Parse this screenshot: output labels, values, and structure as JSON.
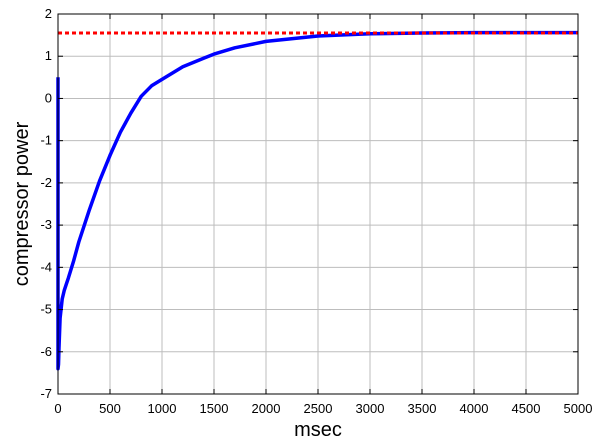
{
  "chart_data": {
    "type": "line",
    "title": "",
    "xlabel": "msec",
    "ylabel": "compressor power",
    "xlim": [
      0,
      5000
    ],
    "ylim": [
      -7,
      2
    ],
    "xticks": [
      0,
      500,
      1000,
      1500,
      2000,
      2500,
      3000,
      3500,
      4000,
      4500,
      5000
    ],
    "xtick_labels": [
      "0",
      "500",
      "1000",
      "1500",
      "2000",
      "2500",
      "3000",
      "3500",
      "4000",
      "4500",
      "5000"
    ],
    "yticks": [
      -7,
      -6,
      -5,
      -4,
      -3,
      -2,
      -1,
      0,
      1,
      2
    ],
    "ytick_labels": [
      "-7",
      "-6",
      "-5",
      "-4",
      "-3",
      "-2",
      "-1",
      "0",
      "1",
      "2"
    ],
    "grid": true,
    "legend": "none",
    "series": [
      {
        "color": "#0000ff",
        "style": "solid",
        "x": [
          0,
          0,
          5,
          10,
          20,
          40,
          60,
          80,
          100,
          150,
          200,
          300,
          400,
          500,
          600,
          700,
          800,
          900,
          1000,
          1200,
          1400,
          1500,
          1700,
          2000,
          2500,
          3000,
          3500,
          4000,
          4500,
          5000
        ],
        "y": [
          0.5,
          -6.4,
          -6.3,
          -5.9,
          -5.2,
          -4.75,
          -4.55,
          -4.4,
          -4.25,
          -3.85,
          -3.4,
          -2.65,
          -1.95,
          -1.35,
          -0.8,
          -0.35,
          0.05,
          0.3,
          0.45,
          0.75,
          0.95,
          1.05,
          1.2,
          1.35,
          1.48,
          1.53,
          1.55,
          1.56,
          1.56,
          1.56
        ]
      },
      {
        "color": "#ff0000",
        "style": "dotted",
        "x": [
          0,
          5000
        ],
        "y": [
          1.55,
          1.55
        ]
      }
    ]
  }
}
